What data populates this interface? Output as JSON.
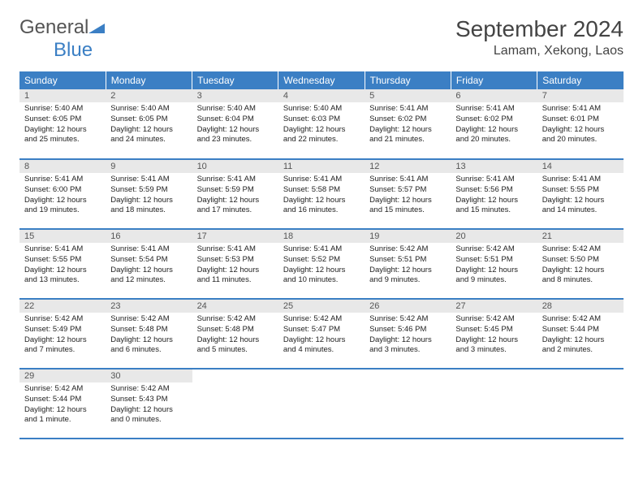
{
  "logo": {
    "text1": "General",
    "text2": "Blue",
    "color1": "#555555",
    "color2": "#3b7fc4"
  },
  "title": "September 2024",
  "location": "Lamam, Xekong, Laos",
  "weekdays": [
    "Sunday",
    "Monday",
    "Tuesday",
    "Wednesday",
    "Thursday",
    "Friday",
    "Saturday"
  ],
  "header_bg": "#3b7fc4",
  "daynum_bg": "#e8e8e8",
  "border_color": "#3b7fc4",
  "days": [
    {
      "n": 1,
      "sr": "5:40 AM",
      "ss": "6:05 PM",
      "dl": "12 hours and 25 minutes."
    },
    {
      "n": 2,
      "sr": "5:40 AM",
      "ss": "6:05 PM",
      "dl": "12 hours and 24 minutes."
    },
    {
      "n": 3,
      "sr": "5:40 AM",
      "ss": "6:04 PM",
      "dl": "12 hours and 23 minutes."
    },
    {
      "n": 4,
      "sr": "5:40 AM",
      "ss": "6:03 PM",
      "dl": "12 hours and 22 minutes."
    },
    {
      "n": 5,
      "sr": "5:41 AM",
      "ss": "6:02 PM",
      "dl": "12 hours and 21 minutes."
    },
    {
      "n": 6,
      "sr": "5:41 AM",
      "ss": "6:02 PM",
      "dl": "12 hours and 20 minutes."
    },
    {
      "n": 7,
      "sr": "5:41 AM",
      "ss": "6:01 PM",
      "dl": "12 hours and 20 minutes."
    },
    {
      "n": 8,
      "sr": "5:41 AM",
      "ss": "6:00 PM",
      "dl": "12 hours and 19 minutes."
    },
    {
      "n": 9,
      "sr": "5:41 AM",
      "ss": "5:59 PM",
      "dl": "12 hours and 18 minutes."
    },
    {
      "n": 10,
      "sr": "5:41 AM",
      "ss": "5:59 PM",
      "dl": "12 hours and 17 minutes."
    },
    {
      "n": 11,
      "sr": "5:41 AM",
      "ss": "5:58 PM",
      "dl": "12 hours and 16 minutes."
    },
    {
      "n": 12,
      "sr": "5:41 AM",
      "ss": "5:57 PM",
      "dl": "12 hours and 15 minutes."
    },
    {
      "n": 13,
      "sr": "5:41 AM",
      "ss": "5:56 PM",
      "dl": "12 hours and 15 minutes."
    },
    {
      "n": 14,
      "sr": "5:41 AM",
      "ss": "5:55 PM",
      "dl": "12 hours and 14 minutes."
    },
    {
      "n": 15,
      "sr": "5:41 AM",
      "ss": "5:55 PM",
      "dl": "12 hours and 13 minutes."
    },
    {
      "n": 16,
      "sr": "5:41 AM",
      "ss": "5:54 PM",
      "dl": "12 hours and 12 minutes."
    },
    {
      "n": 17,
      "sr": "5:41 AM",
      "ss": "5:53 PM",
      "dl": "12 hours and 11 minutes."
    },
    {
      "n": 18,
      "sr": "5:41 AM",
      "ss": "5:52 PM",
      "dl": "12 hours and 10 minutes."
    },
    {
      "n": 19,
      "sr": "5:42 AM",
      "ss": "5:51 PM",
      "dl": "12 hours and 9 minutes."
    },
    {
      "n": 20,
      "sr": "5:42 AM",
      "ss": "5:51 PM",
      "dl": "12 hours and 9 minutes."
    },
    {
      "n": 21,
      "sr": "5:42 AM",
      "ss": "5:50 PM",
      "dl": "12 hours and 8 minutes."
    },
    {
      "n": 22,
      "sr": "5:42 AM",
      "ss": "5:49 PM",
      "dl": "12 hours and 7 minutes."
    },
    {
      "n": 23,
      "sr": "5:42 AM",
      "ss": "5:48 PM",
      "dl": "12 hours and 6 minutes."
    },
    {
      "n": 24,
      "sr": "5:42 AM",
      "ss": "5:48 PM",
      "dl": "12 hours and 5 minutes."
    },
    {
      "n": 25,
      "sr": "5:42 AM",
      "ss": "5:47 PM",
      "dl": "12 hours and 4 minutes."
    },
    {
      "n": 26,
      "sr": "5:42 AM",
      "ss": "5:46 PM",
      "dl": "12 hours and 3 minutes."
    },
    {
      "n": 27,
      "sr": "5:42 AM",
      "ss": "5:45 PM",
      "dl": "12 hours and 3 minutes."
    },
    {
      "n": 28,
      "sr": "5:42 AM",
      "ss": "5:44 PM",
      "dl": "12 hours and 2 minutes."
    },
    {
      "n": 29,
      "sr": "5:42 AM",
      "ss": "5:44 PM",
      "dl": "12 hours and 1 minute."
    },
    {
      "n": 30,
      "sr": "5:42 AM",
      "ss": "5:43 PM",
      "dl": "12 hours and 0 minutes."
    }
  ],
  "labels": {
    "sunrise": "Sunrise:",
    "sunset": "Sunset:",
    "daylight": "Daylight:"
  },
  "first_weekday_index": 0
}
